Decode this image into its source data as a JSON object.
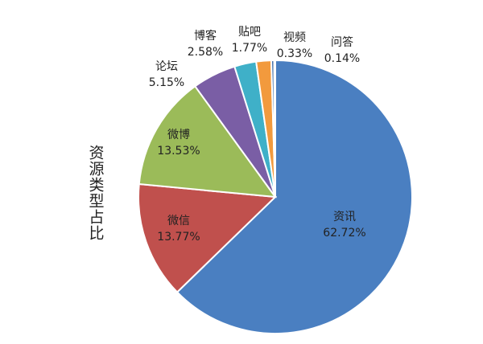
{
  "chart_data": {
    "type": "pie",
    "title": "资源类型占比",
    "categories": [
      "资讯",
      "微信",
      "微博",
      "论坛",
      "博客",
      "贴吧",
      "视频",
      "问答"
    ],
    "values": [
      62.72,
      13.77,
      13.53,
      5.15,
      2.58,
      1.77,
      0.33,
      0.14
    ],
    "value_labels": [
      "62.72%",
      "13.77%",
      "13.53%",
      "5.15%",
      "2.58%",
      "1.77%",
      "0.33%",
      "0.14%"
    ],
    "colors": [
      "#4a7fc1",
      "#c0504d",
      "#9bbb59",
      "#7a5ea5",
      "#3fb0c8",
      "#f29a3d",
      "#3a6aa5",
      "#a8a8a8"
    ]
  }
}
